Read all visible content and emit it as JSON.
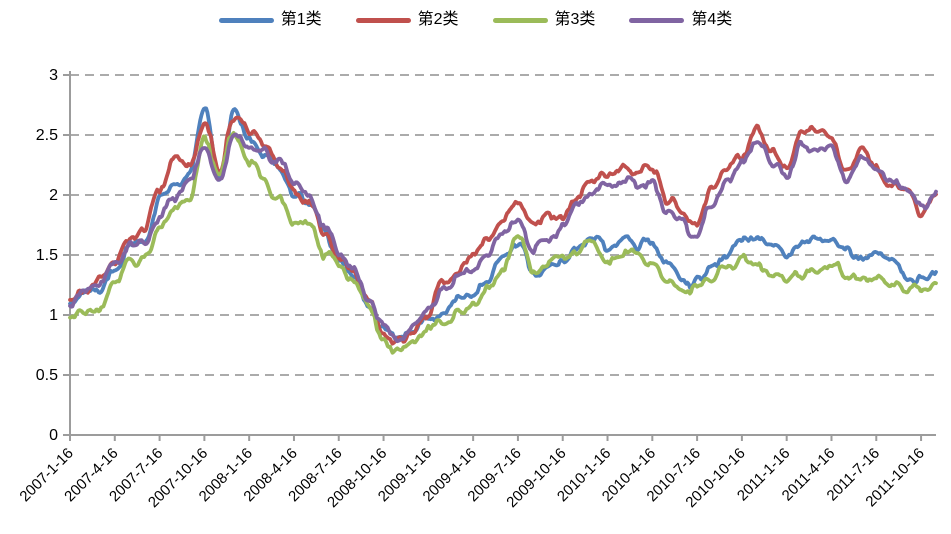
{
  "chart_data": {
    "type": "line",
    "title": "",
    "legend_position": "top",
    "grid": "horizontal-dashed",
    "axis_color": "#9C9C9C",
    "gridline_color": "#ABABAB",
    "text_color": "#000000",
    "y_axis": {
      "min": 0,
      "max": 3,
      "tick_step": 0.5,
      "tick_labels": [
        "0",
        "0.5",
        "1",
        "1.5",
        "2",
        "2.5",
        "3"
      ]
    },
    "x_axis": {
      "tick_labels": [
        "2007-1-16",
        "2007-4-16",
        "2007-7-16",
        "2007-10-16",
        "2008-1-16",
        "2008-4-16",
        "2008-7-16",
        "2008-10-16",
        "2009-1-16",
        "2009-4-16",
        "2009-7-16",
        "2009-10-16",
        "2010-1-16",
        "2010-4-16",
        "2010-7-16",
        "2010-10-16",
        "2011-1-16",
        "2011-4-16",
        "2011-7-16",
        "2011-10-16"
      ],
      "tick_month_indices": [
        0,
        3,
        6,
        9,
        12,
        15,
        18,
        21,
        24,
        27,
        30,
        33,
        36,
        39,
        42,
        45,
        48,
        51,
        54,
        57
      ],
      "label_rotation_deg": -45,
      "resolution": "monthly estimates of a daily series; values sampled at the 16th of each month from 2007-1 to 2011-11"
    },
    "series": [
      {
        "name": "第1类",
        "color": "#4F81BD",
        "values": [
          1.05,
          1.17,
          1.22,
          1.4,
          1.57,
          1.6,
          1.95,
          2.1,
          2.2,
          2.72,
          2.15,
          2.7,
          2.5,
          2.35,
          2.2,
          2.0,
          1.92,
          1.7,
          1.48,
          1.33,
          1.12,
          0.88,
          0.78,
          0.88,
          0.95,
          1.05,
          1.12,
          1.18,
          1.31,
          1.46,
          1.61,
          1.35,
          1.41,
          1.42,
          1.57,
          1.64,
          1.57,
          1.65,
          1.6,
          1.62,
          1.4,
          1.29,
          1.27,
          1.42,
          1.53,
          1.67,
          1.68,
          1.54,
          1.51,
          1.56,
          1.64,
          1.62,
          1.52,
          1.48,
          1.5,
          1.45,
          1.33,
          1.28,
          1.34
        ]
      },
      {
        "name": "第2类",
        "color": "#C0504D",
        "values": [
          1.1,
          1.22,
          1.28,
          1.45,
          1.6,
          1.72,
          2.05,
          2.3,
          2.28,
          2.6,
          2.18,
          2.65,
          2.55,
          2.4,
          2.25,
          2.05,
          1.95,
          1.72,
          1.5,
          1.35,
          1.15,
          0.85,
          0.76,
          0.9,
          1.0,
          1.3,
          1.4,
          1.48,
          1.65,
          1.79,
          1.94,
          1.74,
          1.8,
          1.82,
          2.0,
          2.1,
          2.2,
          2.22,
          2.2,
          2.23,
          1.96,
          1.86,
          1.78,
          2.04,
          2.23,
          2.35,
          2.58,
          2.38,
          2.25,
          2.53,
          2.58,
          2.52,
          2.2,
          2.4,
          2.2,
          2.08,
          2.0,
          1.86,
          1.98
        ]
      },
      {
        "name": "第3类",
        "color": "#9BBB59",
        "values": [
          0.97,
          1.03,
          1.06,
          1.25,
          1.45,
          1.45,
          1.7,
          1.85,
          1.95,
          2.45,
          2.15,
          2.55,
          2.3,
          2.1,
          1.95,
          1.75,
          1.73,
          1.52,
          1.4,
          1.26,
          1.1,
          0.8,
          0.7,
          0.8,
          0.86,
          0.95,
          1.0,
          1.08,
          1.24,
          1.4,
          1.69,
          1.4,
          1.44,
          1.45,
          1.53,
          1.6,
          1.46,
          1.52,
          1.5,
          1.46,
          1.29,
          1.21,
          1.22,
          1.3,
          1.38,
          1.46,
          1.39,
          1.32,
          1.3,
          1.33,
          1.4,
          1.43,
          1.33,
          1.31,
          1.29,
          1.27,
          1.23,
          1.2,
          1.27
        ]
      },
      {
        "name": "第4类",
        "color": "#8064A2",
        "values": [
          1.08,
          1.19,
          1.23,
          1.4,
          1.56,
          1.6,
          1.8,
          2.0,
          2.1,
          2.4,
          2.1,
          2.52,
          2.4,
          2.35,
          2.28,
          2.1,
          1.98,
          1.75,
          1.55,
          1.38,
          1.13,
          0.9,
          0.8,
          0.93,
          1.03,
          1.2,
          1.3,
          1.38,
          1.54,
          1.68,
          1.82,
          1.57,
          1.65,
          1.72,
          1.9,
          2.0,
          2.08,
          2.12,
          2.1,
          2.12,
          1.86,
          1.76,
          1.65,
          1.93,
          2.13,
          2.28,
          2.46,
          2.28,
          2.12,
          2.41,
          2.4,
          2.38,
          2.15,
          2.35,
          2.22,
          2.1,
          2.05,
          1.88,
          2.05
        ]
      }
    ]
  }
}
